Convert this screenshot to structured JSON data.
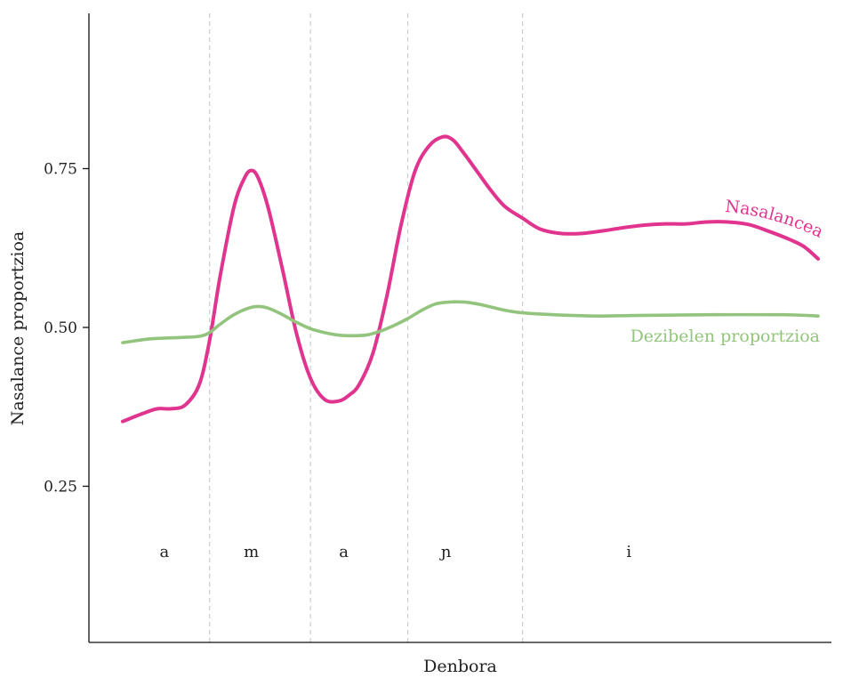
{
  "chart_data": {
    "type": "line",
    "xlabel": "Denbora",
    "ylabel": "Nasalance proportzioa",
    "xlim": [
      0,
      100
    ],
    "ylim": [
      0.0,
      1.0
    ],
    "y_ticks": [
      {
        "value": 0.25,
        "label": "0.25"
      },
      {
        "value": 0.5,
        "label": "0.50"
      },
      {
        "value": 0.75,
        "label": "0.75"
      }
    ],
    "boundaries": [
      12.5,
      27.0,
      41.0,
      57.5
    ],
    "segments": [
      {
        "label": "a",
        "x": 6.0
      },
      {
        "label": "m",
        "x": 18.5
      },
      {
        "label": "a",
        "x": 31.8
      },
      {
        "label": "ɲ",
        "x": 46.5
      },
      {
        "label": "i",
        "x": 72.8
      }
    ],
    "series": [
      {
        "name": "Nasalancea",
        "color": "#e0348f",
        "x": [
          0,
          3,
          5,
          7,
          9,
          11,
          12.5,
          14,
          16,
          17.5,
          18.5,
          19.5,
          21,
          23,
          25,
          27,
          29,
          31,
          32.5,
          34,
          36,
          38,
          40,
          42,
          44,
          46,
          47.5,
          49,
          51,
          53,
          55,
          57.5,
          60,
          63,
          66,
          69,
          72,
          75,
          78,
          81,
          84,
          87,
          90,
          93,
          96,
          98,
          100
        ],
        "values": [
          0.352,
          0.365,
          0.372,
          0.372,
          0.378,
          0.41,
          0.48,
          0.58,
          0.69,
          0.735,
          0.747,
          0.735,
          0.685,
          0.59,
          0.49,
          0.42,
          0.387,
          0.384,
          0.393,
          0.41,
          0.46,
          0.55,
          0.66,
          0.745,
          0.785,
          0.8,
          0.795,
          0.775,
          0.745,
          0.715,
          0.69,
          0.672,
          0.655,
          0.648,
          0.648,
          0.652,
          0.657,
          0.661,
          0.663,
          0.663,
          0.666,
          0.666,
          0.662,
          0.651,
          0.638,
          0.627,
          0.608
        ]
      },
      {
        "name": "Dezibelen proportzioa",
        "color": "#93c47d",
        "x": [
          0,
          4,
          8,
          11,
          12.5,
          14,
          16,
          18,
          19.5,
          21,
          23,
          25,
          27,
          29,
          31,
          33,
          35,
          37,
          39,
          41,
          43,
          45,
          47,
          49,
          51,
          53,
          55,
          57.5,
          62,
          68,
          75,
          85,
          95,
          100
        ],
        "values": [
          0.476,
          0.482,
          0.484,
          0.486,
          0.492,
          0.505,
          0.52,
          0.53,
          0.533,
          0.53,
          0.52,
          0.508,
          0.498,
          0.492,
          0.488,
          0.487,
          0.488,
          0.494,
          0.503,
          0.514,
          0.527,
          0.537,
          0.54,
          0.54,
          0.537,
          0.532,
          0.527,
          0.523,
          0.52,
          0.518,
          0.519,
          0.52,
          0.52,
          0.518
        ]
      }
    ],
    "grid": false,
    "legend": "none"
  }
}
